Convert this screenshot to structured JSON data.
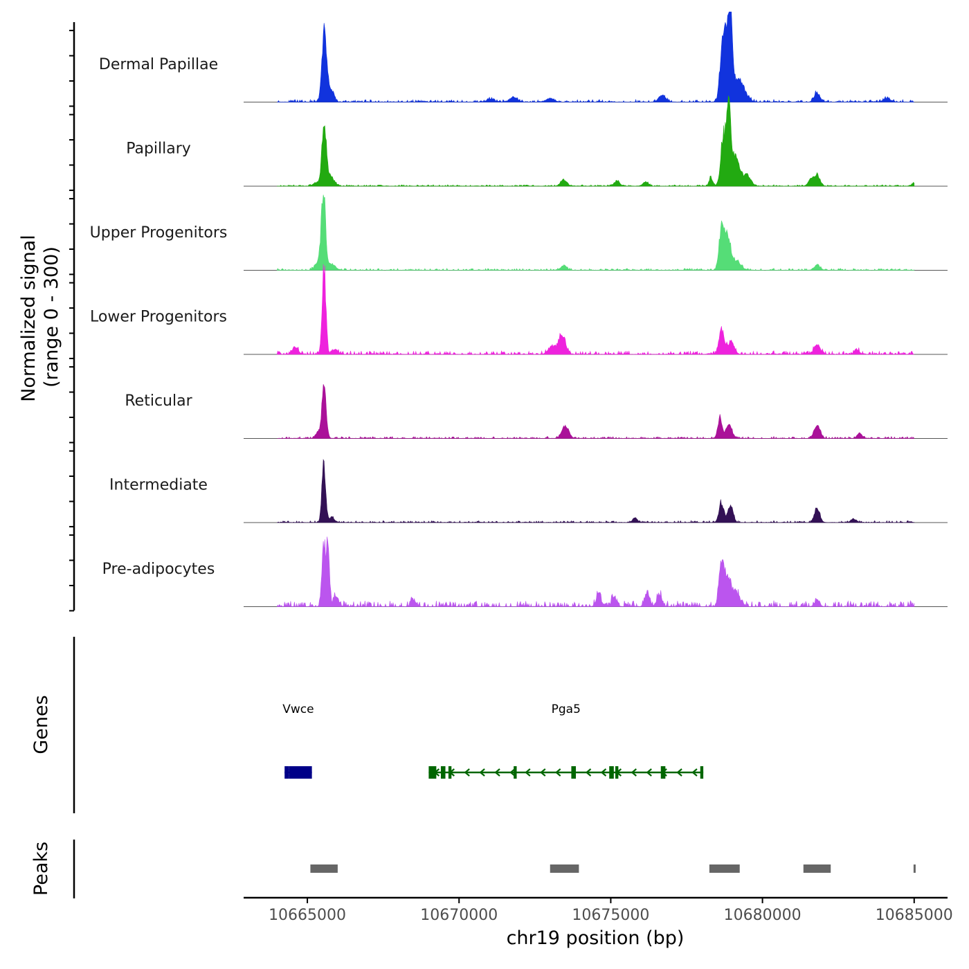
{
  "chart_data": {
    "type": "area",
    "chromosome": "chr19",
    "region": [
      10662900,
      10686100
    ],
    "coverage": {
      "ylabel_line1": "Normalized signal",
      "ylabel_line2": "(range 0 - 300)",
      "ylim": [
        0,
        300
      ],
      "tracks": [
        {
          "name": "Dermal Papillae",
          "color": "#1133DD",
          "peaks": [
            [
              10665540,
              230,
              70
            ],
            [
              10665640,
              100,
              90
            ],
            [
              10665850,
              35,
              60
            ],
            [
              10671040,
              12,
              120
            ],
            [
              10671800,
              18,
              120
            ],
            [
              10673000,
              15,
              120
            ],
            [
              10676700,
              28,
              110
            ],
            [
              10678650,
              165,
              70
            ],
            [
              10678800,
              290,
              80
            ],
            [
              10678950,
              300,
              60
            ],
            [
              10679200,
              90,
              200
            ],
            [
              10681800,
              38,
              90
            ],
            [
              10684100,
              15,
              110
            ]
          ],
          "noise": 5,
          "seed": 11
        },
        {
          "name": "Papillary",
          "color": "#22AA11",
          "peaks": [
            [
              10665550,
              240,
              70
            ],
            [
              10665750,
              40,
              120
            ],
            [
              10665300,
              15,
              100
            ],
            [
              10673450,
              25,
              100
            ],
            [
              10675200,
              20,
              90
            ],
            [
              10676150,
              18,
              90
            ],
            [
              10678300,
              35,
              60
            ],
            [
              10678700,
              190,
              80
            ],
            [
              10678880,
              290,
              70
            ],
            [
              10679100,
              120,
              150
            ],
            [
              10679500,
              40,
              120
            ],
            [
              10681600,
              25,
              90
            ],
            [
              10681800,
              45,
              90
            ],
            [
              10685000,
              12,
              80
            ]
          ],
          "noise": 3,
          "seed": 23
        },
        {
          "name": "Upper Progenitors",
          "color": "#55DD77",
          "peaks": [
            [
              10665530,
              310,
              70
            ],
            [
              10665350,
              30,
              100
            ],
            [
              10665800,
              25,
              120
            ],
            [
              10673450,
              18,
              100
            ],
            [
              10678650,
              170,
              80
            ],
            [
              10678850,
              120,
              90
            ],
            [
              10679100,
              40,
              160
            ],
            [
              10681800,
              20,
              100
            ]
          ],
          "noise": 4,
          "seed": 37
        },
        {
          "name": "Lower Progenitors",
          "color": "#EE22DD",
          "peaks": [
            [
              10665550,
              350,
              60
            ],
            [
              10664600,
              25,
              100
            ],
            [
              10665900,
              20,
              100
            ],
            [
              10673400,
              80,
              110
            ],
            [
              10673050,
              30,
              120
            ],
            [
              10678650,
              100,
              80
            ],
            [
              10678950,
              50,
              110
            ],
            [
              10681800,
              40,
              100
            ],
            [
              10683100,
              20,
              80
            ]
          ],
          "noise": 7,
          "seed": 41
        },
        {
          "name": "Reticular",
          "color": "#AA1199",
          "peaks": [
            [
              10665550,
              200,
              70
            ],
            [
              10665350,
              25,
              80
            ],
            [
              10673500,
              50,
              110
            ],
            [
              10678600,
              85,
              70
            ],
            [
              10678900,
              60,
              90
            ],
            [
              10681800,
              50,
              100
            ],
            [
              10683200,
              20,
              80
            ]
          ],
          "noise": 4,
          "seed": 53
        },
        {
          "name": "Intermediate",
          "color": "#331155",
          "peaks": [
            [
              10665540,
              240,
              60
            ],
            [
              10665800,
              20,
              90
            ],
            [
              10675800,
              18,
              80
            ],
            [
              10678650,
              80,
              80
            ],
            [
              10678950,
              75,
              80
            ],
            [
              10681800,
              55,
              90
            ],
            [
              10683000,
              15,
              80
            ]
          ],
          "noise": 4,
          "seed": 67
        },
        {
          "name": "Pre-adipocytes",
          "color": "#BB55EE",
          "peaks": [
            [
              10665540,
              250,
              60
            ],
            [
              10665680,
              230,
              50
            ],
            [
              10665950,
              40,
              80
            ],
            [
              10668500,
              25,
              80
            ],
            [
              10674600,
              45,
              80
            ],
            [
              10675100,
              35,
              80
            ],
            [
              10676200,
              55,
              80
            ],
            [
              10676600,
              50,
              80
            ],
            [
              10678650,
              170,
              80
            ],
            [
              10678850,
              110,
              90
            ],
            [
              10679100,
              60,
              140
            ],
            [
              10681800,
              25,
              80
            ]
          ],
          "noise": 12,
          "seed": 79
        }
      ]
    },
    "genes": {
      "label": "Genes",
      "items": [
        {
          "name": "Vwce",
          "start": 10664250,
          "end": 10665150,
          "strand": "+",
          "color": "#000088",
          "exons": [
            [
              10664250,
              10664400
            ],
            [
              10664400,
              10665150
            ]
          ]
        },
        {
          "name": "Pga5",
          "start": 10669000,
          "end": 10678050,
          "strand": "-",
          "color": "#006600",
          "exons": [
            [
              10669000,
              10669250
            ],
            [
              10669400,
              10669550
            ],
            [
              10669650,
              10669750
            ],
            [
              10671800,
              10671900
            ],
            [
              10673700,
              10673850
            ],
            [
              10674950,
              10675100
            ],
            [
              10675150,
              10675250
            ],
            [
              10676650,
              10676800
            ],
            [
              10677950,
              10678050
            ]
          ]
        }
      ]
    },
    "peaks_track": {
      "label": "Peaks",
      "color": "#666666",
      "regions": [
        [
          10665100,
          10666000
        ],
        [
          10673000,
          10673950
        ],
        [
          10678250,
          10679250
        ],
        [
          10681350,
          10682250
        ],
        [
          10684980,
          10685040
        ]
      ]
    },
    "xaxis": {
      "label": "chr19 position (bp)",
      "ticks": [
        10665000,
        10670000,
        10675000,
        10680000,
        10685000
      ],
      "tick_labels": [
        "10665000",
        "10670000",
        "10675000",
        "10680000",
        "10685000"
      ]
    }
  }
}
